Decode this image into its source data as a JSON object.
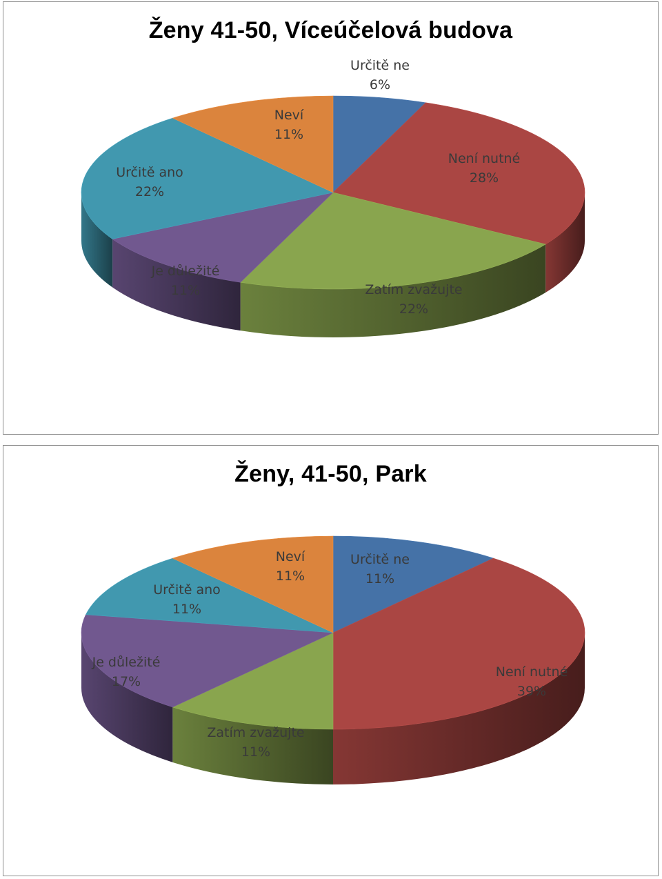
{
  "chart_data": [
    {
      "type": "pie",
      "title": "Ženy 41-50, Víceúčelová budova",
      "slices": [
        {
          "label": "Určitě ne",
          "value": 6,
          "value_label": "6%",
          "color": "#4572a7"
        },
        {
          "label": "Není nutné",
          "value": 28,
          "value_label": "28%",
          "color": "#aa4643"
        },
        {
          "label": "Zatím zvažujte",
          "value": 22,
          "value_label": "22%",
          "color": "#89a54e"
        },
        {
          "label": "Je důležité",
          "value": 11,
          "value_label": "11%",
          "color": "#71588f"
        },
        {
          "label": "Určitě ano",
          "value": 22,
          "value_label": "22%",
          "color": "#4198af"
        },
        {
          "label": "Neví",
          "value": 11,
          "value_label": "11%",
          "color": "#db843d"
        }
      ]
    },
    {
      "type": "pie",
      "title": "Ženy, 41-50, Park",
      "slices": [
        {
          "label": "Určitě ne",
          "value": 11,
          "value_label": "11%",
          "color": "#4572a7"
        },
        {
          "label": "Není nutné",
          "value": 39,
          "value_label": "39%",
          "color": "#aa4643"
        },
        {
          "label": "Zatím zvažujte",
          "value": 11,
          "value_label": "11%",
          "color": "#89a54e"
        },
        {
          "label": "Je důležité",
          "value": 17,
          "value_label": "17%",
          "color": "#71588f"
        },
        {
          "label": "Určitě ano",
          "value": 11,
          "value_label": "11%",
          "color": "#4198af"
        },
        {
          "label": "Neví",
          "value": 11,
          "value_label": "11%",
          "color": "#db843d"
        }
      ]
    }
  ]
}
